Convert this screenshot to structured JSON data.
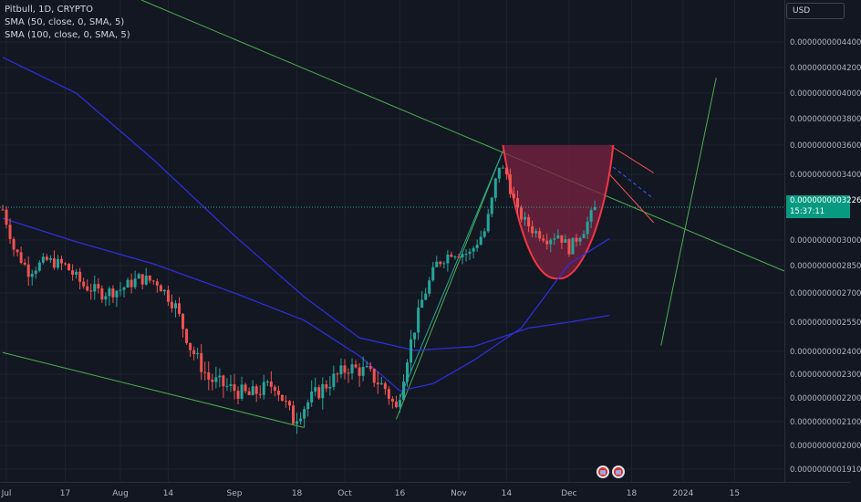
{
  "legend": {
    "title": "Pitbull, 1D, CRYPTO",
    "sma1": "SMA (50, close, 0, SMA, 5)",
    "sma2": "SMA (100, close, 0, SMA, 5)"
  },
  "price_axis": {
    "unit": "USD",
    "last_price": "0.0000000003226",
    "countdown": "15:37:11"
  },
  "colors": {
    "background": "#131722",
    "grid": "#1e222d",
    "up": "#26a69a",
    "down": "#ef5350",
    "sma": "#2e2fd6",
    "trendline": "#4caf50",
    "cup_fill": "#7a2340",
    "cup_stroke": "#f23645"
  },
  "chart_data": {
    "type": "candlestick",
    "title": "Pitbull, 1D, CRYPTO",
    "xlabel": "",
    "ylabel": "",
    "y_tick_labels": [
      "0.0000000004400",
      "0.0000000004200",
      "0.0000000004000",
      "0.0000000003800",
      "0.0000000003600",
      "0.0000000003400",
      "0.0000000003000",
      "0.0000000002850",
      "0.0000000002700",
      "0.0000000002550",
      "0.0000000002400",
      "0.0000000002300",
      "0.0000000002200",
      "0.0000000002100",
      "0.0000000002000",
      "0.0000000001910"
    ],
    "y_ticks": [
      4.4e-10,
      4.2e-10,
      4e-10,
      3.8e-10,
      3.6e-10,
      3.4e-10,
      3e-10,
      2.85e-10,
      2.7e-10,
      2.55e-10,
      2.4e-10,
      2.3e-10,
      2.2e-10,
      2.1e-10,
      2e-10,
      1.91e-10
    ],
    "x_tick_labels": [
      "Jul",
      "17",
      "Aug",
      "14",
      "Sep",
      "18",
      "Oct",
      "16",
      "Nov",
      "14",
      "Dec",
      "18",
      "2024",
      "15"
    ],
    "x_tick_dates": [
      "2023-07-01",
      "2023-07-17",
      "2023-08-01",
      "2023-08-14",
      "2023-09-01",
      "2023-09-18",
      "2023-10-01",
      "2023-10-16",
      "2023-11-01",
      "2023-11-14",
      "2023-12-01",
      "2023-12-18",
      "2024-01-01",
      "2024-01-15"
    ],
    "last_price": 3.226e-10,
    "anchors": [
      [
        "2023-06-30",
        3.21e-10
      ],
      [
        "2023-07-03",
        2.95e-10
      ],
      [
        "2023-07-07",
        2.82e-10
      ],
      [
        "2023-07-12",
        2.88e-10
      ],
      [
        "2023-07-17",
        2.85e-10
      ],
      [
        "2023-07-22",
        2.74e-10
      ],
      [
        "2023-07-27",
        2.7e-10
      ],
      [
        "2023-08-01",
        2.72e-10
      ],
      [
        "2023-08-06",
        2.78e-10
      ],
      [
        "2023-08-11",
        2.76e-10
      ],
      [
        "2023-08-16",
        2.63e-10
      ],
      [
        "2023-08-20",
        2.42e-10
      ],
      [
        "2023-08-25",
        2.28e-10
      ],
      [
        "2023-08-31",
        2.24e-10
      ],
      [
        "2023-09-05",
        2.21e-10
      ],
      [
        "2023-09-12",
        2.26e-10
      ],
      [
        "2023-09-17",
        2.11e-10
      ],
      [
        "2023-09-22",
        2.2e-10
      ],
      [
        "2023-09-27",
        2.27e-10
      ],
      [
        "2023-10-02",
        2.33e-10
      ],
      [
        "2023-10-07",
        2.31e-10
      ],
      [
        "2023-10-12",
        2.24e-10
      ],
      [
        "2023-10-15",
        2.15e-10
      ],
      [
        "2023-10-18",
        2.38e-10
      ],
      [
        "2023-10-22",
        2.66e-10
      ],
      [
        "2023-10-26",
        2.86e-10
      ],
      [
        "2023-10-30",
        2.93e-10
      ],
      [
        "2023-11-04",
        2.92e-10
      ],
      [
        "2023-11-08",
        3.06e-10
      ],
      [
        "2023-11-12",
        3.46e-10
      ],
      [
        "2023-11-14",
        3.4e-10
      ],
      [
        "2023-11-17",
        3.19e-10
      ],
      [
        "2023-11-21",
        3.07e-10
      ],
      [
        "2023-11-25",
        3.01e-10
      ],
      [
        "2023-11-28",
        3.04e-10
      ],
      [
        "2023-12-01",
        2.95e-10
      ],
      [
        "2023-12-05",
        3.07e-10
      ],
      [
        "2023-12-08",
        3.226e-10
      ]
    ],
    "series": [
      {
        "name": "SMA (50, close, 0, SMA, 5)",
        "points": [
          [
            "2023-06-30",
            3.15e-10
          ],
          [
            "2023-07-20",
            2.99e-10
          ],
          [
            "2023-08-10",
            2.86e-10
          ],
          [
            "2023-09-01",
            2.7e-10
          ],
          [
            "2023-09-20",
            2.56e-10
          ],
          [
            "2023-10-05",
            2.38e-10
          ],
          [
            "2023-10-16",
            2.23e-10
          ],
          [
            "2023-10-25",
            2.26e-10
          ],
          [
            "2023-11-05",
            2.36e-10
          ],
          [
            "2023-11-18",
            2.52e-10
          ],
          [
            "2023-12-01",
            2.86e-10
          ],
          [
            "2023-12-12",
            3.01e-10
          ]
        ]
      },
      {
        "name": "SMA (100, close, 0, SMA, 5)",
        "points": [
          [
            "2023-06-30",
            4.28e-10
          ],
          [
            "2023-07-20",
            4e-10
          ],
          [
            "2023-08-10",
            3.5e-10
          ],
          [
            "2023-09-01",
            3.03e-10
          ],
          [
            "2023-09-20",
            2.68e-10
          ],
          [
            "2023-10-05",
            2.47e-10
          ],
          [
            "2023-10-20",
            2.405e-10
          ],
          [
            "2023-11-05",
            2.425e-10
          ],
          [
            "2023-11-20",
            2.52e-10
          ],
          [
            "2023-12-01",
            2.55e-10
          ],
          [
            "2023-12-12",
            2.585e-10
          ]
        ]
      }
    ]
  },
  "events": [
    "event-flag-1",
    "event-flag-2"
  ]
}
